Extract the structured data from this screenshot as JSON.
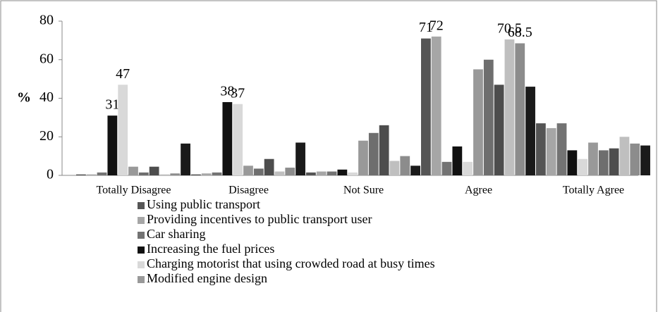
{
  "chart_data": {
    "type": "bar",
    "y_label": "%",
    "categories": [
      "Totally Disagree",
      "Disagree",
      "Not Sure",
      "Agree",
      "Totally Agree"
    ],
    "ylim": [
      0,
      80
    ],
    "yticks": [
      0,
      20,
      40,
      60,
      80
    ],
    "grid": false,
    "series": [
      {
        "name": "Using public transport",
        "color": "#555555",
        "values": [
          0.5,
          0.5,
          1.5,
          71,
          27
        ],
        "value_labels": [
          null,
          null,
          null,
          "71",
          null
        ]
      },
      {
        "name": "Providing incentives to public transport user",
        "color": "#a6a6a6",
        "values": [
          0.5,
          1,
          2,
          72,
          24.5
        ],
        "value_labels": [
          null,
          null,
          null,
          "72",
          null
        ]
      },
      {
        "name": "Car sharing",
        "color": "#737373",
        "values": [
          1.5,
          1.5,
          2,
          7,
          27
        ]
      },
      {
        "name": "Increasing the fuel prices",
        "color": "#111111",
        "values": [
          31,
          38,
          3,
          15,
          13
        ],
        "value_labels": [
          "31",
          "38",
          null,
          null,
          null
        ]
      },
      {
        "name": "Charging motorist that using crowded road at busy times",
        "color": "#d9d9d9",
        "values": [
          47,
          37,
          1.5,
          7,
          8.5
        ],
        "value_labels": [
          "47",
          "37",
          null,
          null,
          null
        ]
      },
      {
        "name": "Modified engine design",
        "color": "#999999",
        "values": [
          4.5,
          5,
          18,
          55,
          17
        ]
      },
      {
        "color": "#6e6e6e",
        "values": [
          1.5,
          3.5,
          22,
          60,
          13
        ]
      },
      {
        "color": "#4d4d4d",
        "values": [
          4.5,
          8.5,
          26,
          47,
          14
        ]
      },
      {
        "color": "#bfbfbf",
        "values": [
          0.5,
          2,
          7.5,
          70.5,
          20
        ],
        "value_labels": [
          null,
          null,
          null,
          "70.5",
          null
        ]
      },
      {
        "color": "#8c8c8c",
        "values": [
          1,
          4,
          10,
          68.5,
          16.5
        ],
        "value_labels": [
          null,
          null,
          null,
          "68.5",
          null
        ]
      },
      {
        "color": "#1a1a1a",
        "values": [
          16.5,
          17,
          5,
          46,
          15.5
        ]
      }
    ]
  }
}
